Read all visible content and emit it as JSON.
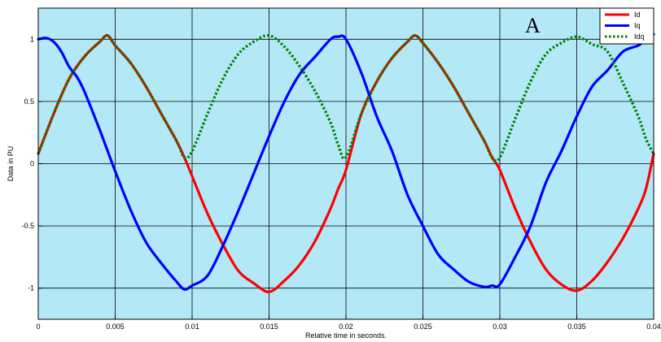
{
  "chart_data": {
    "type": "line",
    "title": "",
    "xlabel": "Relative time in seconds.",
    "ylabel": "Data in PU",
    "xlim": [
      0,
      0.04
    ],
    "ylim": [
      -1.25,
      1.25
    ],
    "xticks": [
      0,
      0.005,
      0.01,
      0.015,
      0.02,
      0.025,
      0.03,
      0.035,
      0.04
    ],
    "xtick_labels": [
      "0",
      "0.005",
      "0.01",
      "0.015",
      "0.02",
      "0.025",
      "0.03",
      "0.035",
      "0.04"
    ],
    "yticks": [
      -1,
      -0.5,
      0,
      0.5,
      1
    ],
    "ytick_labels": [
      "-1",
      "-0.5",
      "0",
      "0.5",
      "1"
    ],
    "grid": true,
    "background_color": "#b3e9f7",
    "legend_position": "top-right",
    "annotation": "A",
    "series": [
      {
        "name": "Id",
        "color": "#ff0000",
        "style": "solid",
        "x": [
          0,
          0.001,
          0.002,
          0.003,
          0.004,
          0.0045,
          0.005,
          0.006,
          0.007,
          0.008,
          0.009,
          0.0095,
          0.01,
          0.011,
          0.012,
          0.013,
          0.014,
          0.015,
          0.016,
          0.017,
          0.018,
          0.019,
          0.0195,
          0.02,
          0.021,
          0.022,
          0.023,
          0.024,
          0.0245,
          0.025,
          0.026,
          0.027,
          0.028,
          0.029,
          0.0295,
          0.03,
          0.031,
          0.032,
          0.033,
          0.034,
          0.035,
          0.036,
          0.037,
          0.038,
          0.039,
          0.0395,
          0.04
        ],
        "y": [
          0.08,
          0.4,
          0.68,
          0.86,
          0.98,
          1.03,
          0.95,
          0.81,
          0.62,
          0.4,
          0.18,
          0.05,
          -0.1,
          -0.4,
          -0.65,
          -0.86,
          -0.96,
          -1.03,
          -0.94,
          -0.81,
          -0.62,
          -0.36,
          -0.2,
          -0.05,
          0.4,
          0.66,
          0.85,
          0.98,
          1.03,
          0.97,
          0.81,
          0.62,
          0.4,
          0.18,
          0.05,
          -0.05,
          -0.36,
          -0.63,
          -0.85,
          -0.97,
          -1.02,
          -0.94,
          -0.79,
          -0.6,
          -0.36,
          -0.2,
          0.08
        ]
      },
      {
        "name": "Iq",
        "color": "#0000ff",
        "style": "solid",
        "x": [
          0,
          0.0005,
          0.001,
          0.0015,
          0.002,
          0.0025,
          0.003,
          0.004,
          0.005,
          0.006,
          0.007,
          0.008,
          0.009,
          0.0095,
          0.01,
          0.011,
          0.012,
          0.013,
          0.014,
          0.015,
          0.016,
          0.017,
          0.018,
          0.019,
          0.0195,
          0.02,
          0.021,
          0.022,
          0.023,
          0.024,
          0.025,
          0.026,
          0.027,
          0.028,
          0.029,
          0.0295,
          0.03,
          0.031,
          0.032,
          0.033,
          0.034,
          0.035,
          0.036,
          0.037,
          0.038,
          0.039,
          0.0395,
          0.04
        ],
        "y": [
          1.0,
          1.01,
          0.98,
          0.9,
          0.78,
          0.7,
          0.58,
          0.27,
          -0.06,
          -0.37,
          -0.63,
          -0.8,
          -0.95,
          -1.01,
          -0.98,
          -0.9,
          -0.66,
          -0.38,
          -0.08,
          0.22,
          0.5,
          0.72,
          0.86,
          1.0,
          1.02,
          1.0,
          0.73,
          0.38,
          0.1,
          -0.25,
          -0.5,
          -0.73,
          -0.85,
          -0.95,
          -0.99,
          -0.98,
          -0.97,
          -0.75,
          -0.5,
          -0.15,
          0.1,
          0.38,
          0.62,
          0.75,
          0.9,
          0.95,
          1.0,
          1.04
        ]
      },
      {
        "name": "Idq",
        "color": "#008000",
        "style": "dotted",
        "x": [
          0,
          0.001,
          0.002,
          0.003,
          0.004,
          0.0045,
          0.005,
          0.006,
          0.007,
          0.008,
          0.009,
          0.0095,
          0.01,
          0.011,
          0.012,
          0.013,
          0.014,
          0.015,
          0.016,
          0.017,
          0.018,
          0.019,
          0.0195,
          0.02,
          0.021,
          0.022,
          0.023,
          0.024,
          0.0245,
          0.025,
          0.026,
          0.027,
          0.028,
          0.029,
          0.0295,
          0.03,
          0.031,
          0.032,
          0.033,
          0.034,
          0.035,
          0.036,
          0.037,
          0.038,
          0.039,
          0.0395,
          0.04
        ],
        "y": [
          0.08,
          0.4,
          0.68,
          0.86,
          0.98,
          1.03,
          0.95,
          0.81,
          0.62,
          0.4,
          0.18,
          0.05,
          0.1,
          0.4,
          0.68,
          0.88,
          0.98,
          1.03,
          0.94,
          0.78,
          0.58,
          0.33,
          0.15,
          0.05,
          0.4,
          0.66,
          0.85,
          0.98,
          1.03,
          0.97,
          0.81,
          0.62,
          0.4,
          0.18,
          0.05,
          0.05,
          0.36,
          0.66,
          0.88,
          0.97,
          1.02,
          0.96,
          0.9,
          0.65,
          0.38,
          0.2,
          0.08
        ]
      }
    ]
  }
}
